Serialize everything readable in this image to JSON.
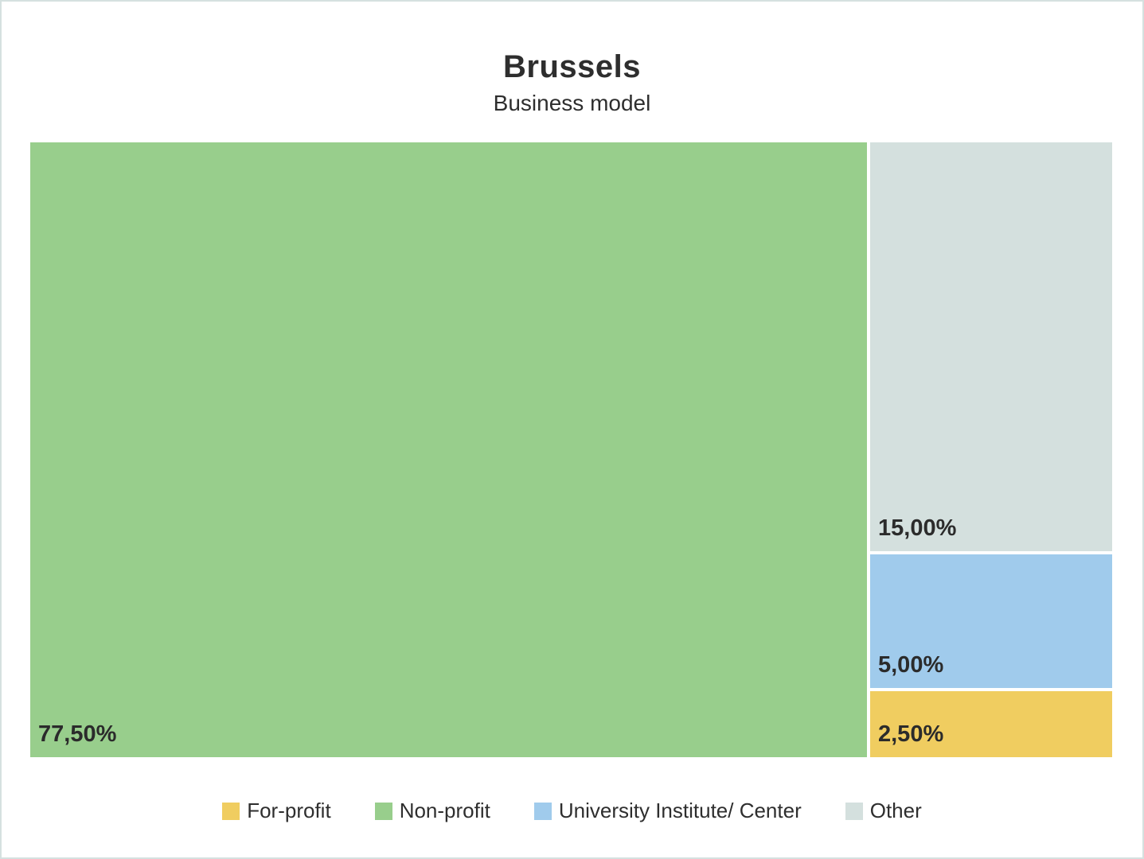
{
  "page": {
    "title": "Brussels",
    "subtitle": "Business model",
    "border_color": "#d5e1e0",
    "background_color": "#ffffff",
    "text_color": "#2e2e2e"
  },
  "chart_data": {
    "type": "treemap",
    "title": "Brussels",
    "subtitle": "Business model",
    "value_unit": "percent",
    "value_format": "comma-decimal",
    "items": [
      {
        "name": "Non-profit",
        "value": 77.5,
        "label": "77,50%",
        "color": "#98ce8c"
      },
      {
        "name": "Other",
        "value": 15.0,
        "label": "15,00%",
        "color": "#d4e0de"
      },
      {
        "name": "University Institute/ Center",
        "value": 5.0,
        "label": "5,00%",
        "color": "#a0cbec"
      },
      {
        "name": "For-profit",
        "value": 2.5,
        "label": "2,50%",
        "color": "#f0cd60"
      }
    ],
    "legend_position": "bottom",
    "legend": [
      {
        "label": "For-profit",
        "color": "#f0cd60"
      },
      {
        "label": "Non-profit",
        "color": "#98ce8c"
      },
      {
        "label": "University Institute/ Center",
        "color": "#a0cbec"
      },
      {
        "label": "Other",
        "color": "#d4e0de"
      }
    ]
  }
}
